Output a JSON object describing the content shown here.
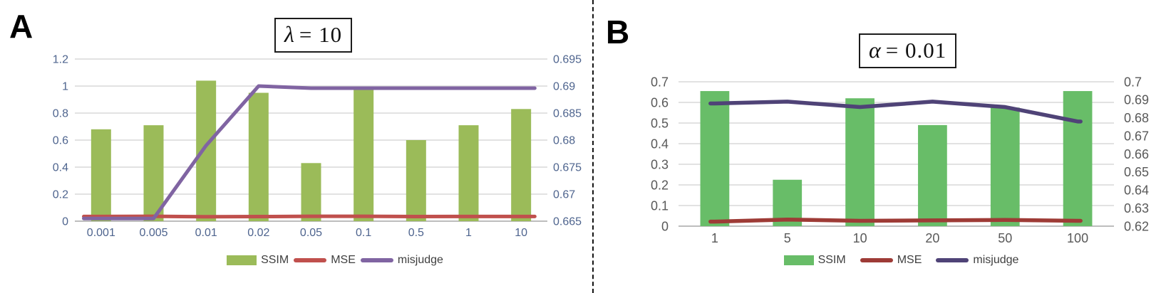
{
  "figure": {
    "background": "#ffffff",
    "divider_style": "vertical-dashed-line"
  },
  "chart_data": [
    {
      "type": "bar",
      "combo": "bar+line",
      "panel_label": "A",
      "title": "λ = 10",
      "title_symbol": "λ",
      "title_rest": "= 10",
      "categories": [
        "0.001",
        "0.005",
        "0.01",
        "0.02",
        "0.05",
        "0.1",
        "0.5",
        "1",
        "10"
      ],
      "series": [
        {
          "name": "SSIM",
          "type": "bar",
          "axis": "left",
          "color": "#9bbb59",
          "values": [
            0.68,
            0.71,
            1.04,
            0.95,
            0.43,
            0.975,
            0.6,
            0.71,
            0.83
          ]
        },
        {
          "name": "MSE",
          "type": "line",
          "axis": "left",
          "color": "#c0504d",
          "values": [
            0.035,
            0.036,
            0.033,
            0.034,
            0.036,
            0.036,
            0.034,
            0.035,
            0.035
          ]
        },
        {
          "name": "misjudge",
          "type": "line",
          "axis": "right",
          "color": "#8064a2",
          "values": [
            0.6655,
            0.6655,
            0.679,
            0.69,
            0.6896,
            0.6896,
            0.6896,
            0.6896,
            0.6896
          ]
        }
      ],
      "left_axis": {
        "min": 0,
        "max": 1.2,
        "ticks": [
          "1.2",
          "1",
          "0.8",
          "0.6",
          "0.4",
          "0.2",
          "0"
        ]
      },
      "right_axis": {
        "min": 0.665,
        "max": 0.695,
        "ticks": [
          "0.695",
          "0.69",
          "0.685",
          "0.68",
          "0.675",
          "0.67",
          "0.665"
        ]
      },
      "legend": [
        "SSIM",
        "MSE",
        "misjudge"
      ],
      "legend_position": "bottom",
      "grid": "horizontal"
    },
    {
      "type": "bar",
      "combo": "bar+line",
      "panel_label": "B",
      "title": "α = 0.01",
      "title_symbol": "α",
      "title_rest": "= 0.01",
      "categories": [
        "1",
        "5",
        "10",
        "20",
        "50",
        "100"
      ],
      "series": [
        {
          "name": "SSIM",
          "type": "bar",
          "axis": "left",
          "color": "#68bd68",
          "values": [
            0.655,
            0.225,
            0.62,
            0.49,
            0.575,
            0.655
          ]
        },
        {
          "name": "MSE",
          "type": "line",
          "axis": "left",
          "color": "#9e3b36",
          "values": [
            0.022,
            0.032,
            0.026,
            0.028,
            0.03,
            0.026
          ]
        },
        {
          "name": "misjudge",
          "type": "line",
          "axis": "right",
          "color": "#4f4377",
          "values": [
            0.688,
            0.689,
            0.686,
            0.689,
            0.686,
            0.678
          ]
        }
      ],
      "left_axis": {
        "min": 0,
        "max": 0.7,
        "ticks": [
          "0.7",
          "0.6",
          "0.5",
          "0.4",
          "0.3",
          "0.2",
          "0.1",
          "0"
        ]
      },
      "right_axis": {
        "min": 0.62,
        "max": 0.7,
        "ticks": [
          "0.7",
          "0.69",
          "0.68",
          "0.67",
          "0.66",
          "0.65",
          "0.64",
          "0.63",
          "0.62"
        ]
      },
      "legend": [
        "SSIM",
        "MSE",
        "misjudge"
      ],
      "legend_position": "bottom",
      "grid": "horizontal"
    }
  ]
}
